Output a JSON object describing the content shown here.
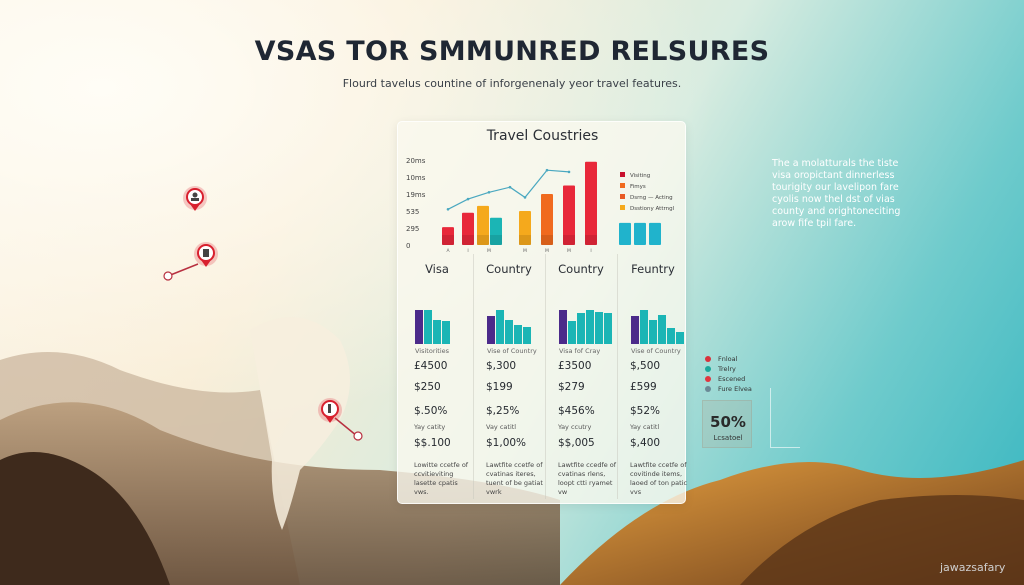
{
  "header": {
    "title": "VSAS TOR SMMUNRED RELSURES",
    "subtitle": "Flourd tavelus countine of inforgenenaly yeor travel features."
  },
  "chart_data": {
    "type": "bar",
    "title": "Travel Coustries",
    "ytick_labels": [
      "0",
      "295",
      "535",
      "19ms",
      "10ms",
      "20ms"
    ],
    "xtick_labels": [
      "A",
      "I",
      "M",
      "M",
      "M",
      "M",
      "I"
    ],
    "ylim": [
      0,
      5
    ],
    "series": [
      {
        "color": "#e8283a",
        "values": [
          1.05,
          1.9,
          0,
          0,
          0,
          3.5,
          4.9
        ]
      },
      {
        "color": "#f5a91c",
        "values": [
          0,
          0,
          2.3,
          2.0,
          0,
          0,
          0
        ]
      },
      {
        "color": "#f06a1e",
        "values": [
          0,
          0,
          0,
          0,
          3.0,
          0,
          0
        ]
      },
      {
        "color": "#1bb5b5",
        "values": [
          0,
          0,
          1.6,
          0,
          0,
          0,
          0
        ]
      }
    ],
    "line": [
      2.1,
      2.7,
      3.1,
      3.4,
      2.8,
      4.4,
      4.3
    ],
    "extra_bars": [
      1.3,
      1.3,
      1.3
    ],
    "legend": [
      {
        "label": "Visiting",
        "color": "#c8102e"
      },
      {
        "label": "Fimys",
        "color": "#f06a1e"
      },
      {
        "label": "Dsrng — Acting",
        "color": "#e85a25"
      },
      {
        "label": "Dsstiony Attrngl",
        "color": "#f5a91c"
      }
    ],
    "grid": false,
    "legend_position": "right"
  },
  "columns": [
    {
      "header": "Visa",
      "caption": "Visitorities",
      "bars": [
        1,
        1,
        0.72,
        0.68
      ],
      "values": [
        "£4500",
        "$250",
        "$.50%",
        "$$.100"
      ],
      "sub": "Yay catity",
      "desc": "Lowitte ccetfe of ccvitieviting lasette cpatis vws."
    },
    {
      "header": "Country",
      "caption": "Vise of Country",
      "bars": [
        0.82,
        1,
        0.72,
        0.57,
        0.5
      ],
      "values": [
        "$,300",
        "$199",
        "$,25%",
        "$1,00%"
      ],
      "sub": "Vay catitl",
      "desc": "Lawtfite ccetfe of cvatinas iteres, tuent of be gatiat vwrk"
    },
    {
      "header": "Country",
      "caption": "Visa fof Cray",
      "bars": [
        1,
        0.68,
        0.92,
        1,
        0.94,
        0.92
      ],
      "values": [
        "£3500",
        "$279",
        "$456%",
        "$$,005"
      ],
      "sub": "Yay ccutry",
      "desc": "Lawtfite ccedfe of cvatinas rlens, loopt ctti ryamet vw"
    },
    {
      "header": "Feuntry",
      "caption": "Vise of Country",
      "bars": [
        0.82,
        1,
        0.7,
        0.85,
        0.48,
        0.35
      ],
      "values": [
        "$,500",
        "£599",
        "$52%",
        "$,400"
      ],
      "sub": "Yay catitl",
      "desc": "Lawtfite ccetfe of covitinde items, laoed of ton patic vvs"
    }
  ],
  "side_text": "The a molatturals the tiste visa oropictant dinnerless tourigity our lavelipon fare cyolis now thel dst of vias county and orightoneciting arow fife tpil fare.",
  "legend2": [
    {
      "label": "Fnloal",
      "color": "#d8323c"
    },
    {
      "label": "Trelry",
      "color": "#1ba89c"
    },
    {
      "label": "Escened",
      "color": "#e0353f"
    },
    {
      "label": "Fure Elvea",
      "color": "#6a8a96"
    }
  ],
  "stat": {
    "value": "50%",
    "label": "Lcsatoel"
  },
  "watermark": "jawazsafary",
  "colors": {
    "purple": "#4b2a8a",
    "teal": "#1bb5b5",
    "accent_red": "#d8202e"
  },
  "map_pins": [
    "person-pin",
    "document-pin",
    "landmark-pin"
  ]
}
